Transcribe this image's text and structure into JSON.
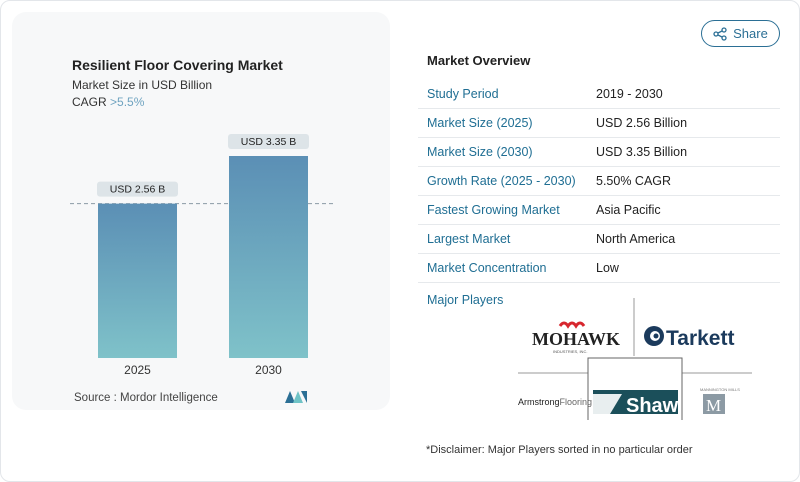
{
  "header": {
    "share_label": "Share",
    "share_icon": "share-icon"
  },
  "chart_panel": {
    "title": "Resilient Floor Covering Market",
    "subtitle": "Market Size in USD Billion",
    "cagr_label": "CAGR",
    "cagr_value": ">5.5%",
    "source": "Source :  Mordor Intelligence",
    "logo": "MI"
  },
  "chart_data": {
    "type": "bar",
    "categories": [
      "2025",
      "2030"
    ],
    "values": [
      2.56,
      3.35
    ],
    "data_labels": [
      "USD 2.56 B",
      "USD 3.35 B"
    ],
    "title": "Resilient Floor Covering Market",
    "ylabel": "Market Size in USD Billion",
    "ylim": [
      0,
      3.35
    ],
    "grid": false,
    "bar_color_top": "#5b8fb5",
    "bar_color_bottom": "#7fc2c9",
    "reference_line_value": 2.56
  },
  "overview": {
    "title": "Market Overview",
    "rows": [
      {
        "label": "Study Period",
        "value": "2019 - 2030"
      },
      {
        "label": "Market Size (2025)",
        "value": "USD 2.56 Billion"
      },
      {
        "label": "Market Size (2030)",
        "value": "USD 3.35 Billion"
      },
      {
        "label": "Growth Rate (2025 - 2030)",
        "value": "5.50% CAGR"
      },
      {
        "label": "Fastest Growing Market",
        "value": "Asia Pacific"
      },
      {
        "label": "Largest Market",
        "value": "North America"
      },
      {
        "label": "Market Concentration",
        "value": "Low"
      }
    ],
    "major_players_label": "Major Players",
    "players": [
      "MOHAWK INDUSTRIES, INC.",
      "Tarkett",
      "Armstrong Flooring",
      "Shaw",
      "MANNINGTON MILLS"
    ],
    "disclaimer": "*Disclaimer: Major Players sorted in no particular order"
  }
}
